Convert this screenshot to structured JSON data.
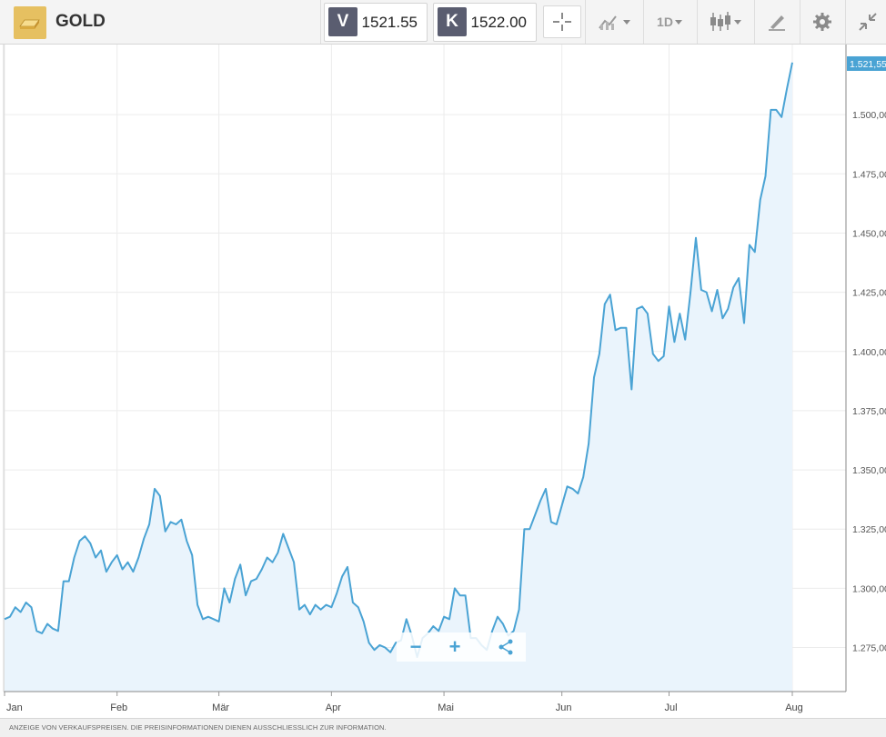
{
  "header": {
    "symbol": "GOLD",
    "sell": {
      "label": "V",
      "value": "1521.55"
    },
    "buy": {
      "label": "K",
      "value": "1522.00"
    },
    "interval": "1D",
    "icons": [
      "gold-bar-icon",
      "crosshair-icon",
      "compare-icon",
      "candlestick-icon",
      "draw-icon",
      "gear-icon",
      "collapse-icon"
    ]
  },
  "footer": {
    "text": "ANZEIGE VON VERKAUFSPREISEN. DIE PREISINFORMATIONEN DIENEN AUSSCHLIESSLICH ZUR INFORMATION."
  },
  "colors": {
    "line": "#4aa3d4",
    "fill": "#eaf4fc",
    "grid": "#ececec",
    "last_price_bg": "#4aa3d4"
  },
  "chart_data": {
    "type": "area",
    "x_ticks": [
      "Jan",
      "Feb",
      "Mär",
      "Apr",
      "Mai",
      "Jun",
      "Jul",
      "Aug"
    ],
    "y_ticks": [
      "1.275,00",
      "1.300,00",
      "1.325,00",
      "1.350,00",
      "1.375,00",
      "1.400,00",
      "1.425,00",
      "1.450,00",
      "1.475,00",
      "1.500,00"
    ],
    "ylim": [
      1266,
      1525
    ],
    "last_price_label": "1.521,55",
    "grid": true,
    "series": [
      {
        "values": [
          1287,
          1288,
          1292,
          1290,
          1294,
          1292,
          1282,
          1281,
          1285,
          1283,
          1282,
          1303,
          1303,
          1313,
          1320,
          1322,
          1319,
          1313,
          1316,
          1307,
          1311,
          1314,
          1308,
          1311,
          1307,
          1313,
          1321,
          1327,
          1342,
          1339,
          1324,
          1328,
          1327,
          1329,
          1320,
          1314,
          1293,
          1287,
          1288,
          1287,
          1286,
          1300,
          1294,
          1304,
          1310,
          1297,
          1303,
          1304,
          1308,
          1313,
          1311,
          1315,
          1323,
          1317,
          1311,
          1291,
          1293,
          1289,
          1293,
          1291,
          1293,
          1292,
          1298,
          1305,
          1309,
          1294,
          1292,
          1286,
          1277,
          1274,
          1276,
          1275,
          1273,
          1277,
          1278,
          1287,
          1280,
          1271,
          1279,
          1281,
          1284,
          1282,
          1288,
          1287,
          1300,
          1297,
          1297,
          1279,
          1279,
          1276,
          1274,
          1282,
          1288,
          1285,
          1280,
          1282,
          1291,
          1325,
          1325,
          1331,
          1337,
          1342,
          1328,
          1327,
          1335,
          1343,
          1342,
          1340,
          1347,
          1361,
          1389,
          1399,
          1420,
          1424,
          1409,
          1410,
          1410,
          1384,
          1418,
          1419,
          1416,
          1399,
          1396,
          1398,
          1419,
          1404,
          1416,
          1405,
          1425,
          1448,
          1426,
          1425,
          1417,
          1426,
          1414,
          1418,
          1427,
          1431,
          1412,
          1445,
          1442,
          1464,
          1474,
          1502,
          1502,
          1499,
          1511,
          1522
        ]
      }
    ]
  }
}
